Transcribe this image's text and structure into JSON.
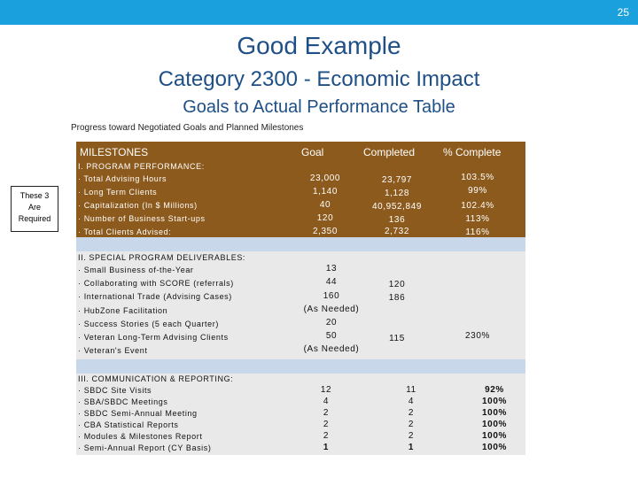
{
  "page_number": "25",
  "title": "Good Example",
  "subtitle": "Category 2300 - Economic Impact",
  "subtitle2": "Goals to Actual Performance Table",
  "caption": "Progress toward Negotiated Goals and Planned Milestones",
  "required_note": [
    "These 3",
    "Are",
    "Required"
  ],
  "table": {
    "headers": [
      "MILESTONES",
      "Goal",
      "Completed",
      "% Complete"
    ],
    "section1": {
      "title": "I. PROGRAM PERFORMANCE:",
      "rows": [
        {
          "label": "· Total Advising Hours",
          "goal": "23,000",
          "completed": "23,797",
          "pct": "103.5%"
        },
        {
          "label": "· Long Term Clients",
          "goal": "1,140",
          "completed": "1,128",
          "pct": "99%"
        },
        {
          "label": "· Capitalization (In $ Millions)",
          "goal": "40",
          "completed": "40,952,849",
          "pct": "102.4%"
        },
        {
          "label": "· Number of Business Start-ups",
          "goal": "120",
          "completed": "136",
          "pct": "113%"
        },
        {
          "label": "· Total Clients Advised:",
          "goal": "2,350",
          "completed": "2,732",
          "pct": "116%"
        }
      ]
    },
    "section2": {
      "title": "II. SPECIAL PROGRAM DELIVERABLES:",
      "rows": [
        {
          "label": "· Small Business of-the-Year",
          "goal": "13"
        },
        {
          "label": "· Collaborating with SCORE (referrals)",
          "goal": "44"
        },
        {
          "label": "· International Trade (Advising Cases)",
          "goal": "160"
        },
        {
          "label": "· HubZone Facilitation",
          "goal": "(As Needed)"
        },
        {
          "label": "· Success Stories (5 each Quarter)",
          "goal": "20"
        },
        {
          "label": "· Veteran Long-Term Advising Clients",
          "goal": "50"
        },
        {
          "label": "· Veteran's Event",
          "goal": "(As Needed)"
        }
      ],
      "completed": [
        "120",
        "186",
        "115"
      ],
      "pct": "230%"
    },
    "section3": {
      "title": "III. COMMUNICATION & REPORTING:",
      "rows": [
        {
          "label": "· SBDC Site Visits",
          "goal": "12",
          "completed": "11",
          "pct": "92%"
        },
        {
          "label": "· SBA/SBDC Meetings",
          "goal": "4",
          "completed": "4",
          "pct": "100%"
        },
        {
          "label": "· SBDC Semi-Annual Meeting",
          "goal": "2",
          "completed": "2",
          "pct": "100%"
        },
        {
          "label": "· CBA Statistical Reports",
          "goal": "2",
          "completed": "2",
          "pct": "100%"
        },
        {
          "label": "· Modules & Milestones Report",
          "goal": "2",
          "completed": "2",
          "pct": "100%"
        },
        {
          "label": "· Semi-Annual Report (CY Basis)",
          "goal": "1",
          "completed": "1",
          "pct": "100%"
        }
      ]
    }
  }
}
